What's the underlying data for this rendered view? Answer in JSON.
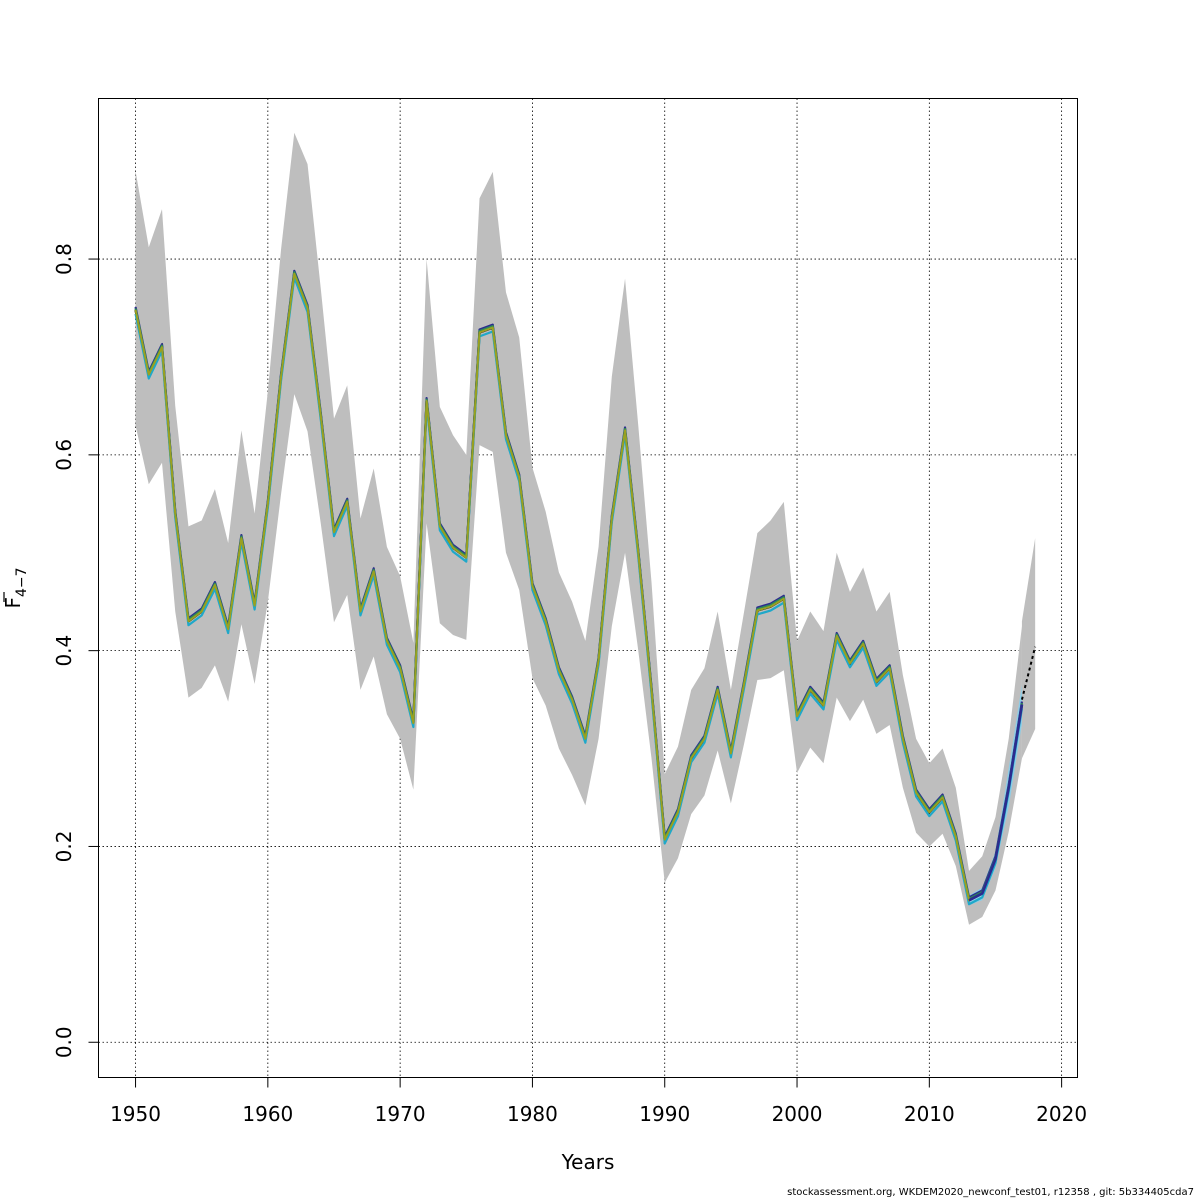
{
  "chart_data": {
    "type": "line",
    "title": "",
    "xlabel": "Years",
    "ylabel_base": "F",
    "ylabel_sub": "4−7",
    "xlim": [
      1947.2,
      2021.2
    ],
    "ylim": [
      -0.036,
      0.964
    ],
    "x_ticks": [
      1950,
      1960,
      1970,
      1980,
      1990,
      2000,
      2010,
      2020
    ],
    "x_tick_labels": [
      "1950",
      "1960",
      "1970",
      "1980",
      "1990",
      "2000",
      "2010",
      "2020"
    ],
    "y_ticks": [
      0.0,
      0.2,
      0.4,
      0.6,
      0.8
    ],
    "y_tick_labels": [
      "0.0",
      "0.2",
      "0.4",
      "0.6",
      "0.8"
    ],
    "grid": true,
    "colors": {
      "band": "#bebebe",
      "main_line": "#000000",
      "retro_lines": [
        "#2b2b8f",
        "#1fa8c9",
        "#2e8b57",
        "#9aa020"
      ],
      "retro_band": "#87ceeb",
      "forecast_line": "#000000"
    },
    "years": [
      1950,
      1951,
      1952,
      1953,
      1954,
      1955,
      1956,
      1957,
      1958,
      1959,
      1960,
      1961,
      1962,
      1963,
      1964,
      1965,
      1966,
      1967,
      1968,
      1969,
      1970,
      1971,
      1972,
      1973,
      1974,
      1975,
      1976,
      1977,
      1978,
      1979,
      1980,
      1981,
      1982,
      1983,
      1984,
      1985,
      1986,
      1987,
      1988,
      1989,
      1990,
      1991,
      1992,
      1993,
      1994,
      1995,
      1996,
      1997,
      1998,
      1999,
      2000,
      2001,
      2002,
      2003,
      2004,
      2005,
      2006,
      2007,
      2008,
      2009,
      2010,
      2011,
      2012,
      2013,
      2014,
      2015,
      2016,
      2017
    ],
    "estimate": [
      0.748,
      0.682,
      0.71,
      0.54,
      0.43,
      0.44,
      0.467,
      0.422,
      0.515,
      0.446,
      0.55,
      0.68,
      0.785,
      0.75,
      0.64,
      0.521,
      0.552,
      0.44,
      0.481,
      0.41,
      0.382,
      0.326,
      0.655,
      0.527,
      0.505,
      0.495,
      0.725,
      0.73,
      0.62,
      0.577,
      0.466,
      0.43,
      0.38,
      0.35,
      0.31,
      0.39,
      0.535,
      0.625,
      0.5,
      0.36,
      0.207,
      0.235,
      0.29,
      0.31,
      0.36,
      0.295,
      0.366,
      0.441,
      0.445,
      0.453,
      0.333,
      0.36,
      0.344,
      0.415,
      0.387,
      0.407,
      0.368,
      0.382,
      0.31,
      0.255,
      0.235,
      0.25,
      0.21,
      0.145,
      0.152,
      0.187,
      0.26,
      0.345
    ],
    "upper": [
      0.89,
      0.812,
      0.851,
      0.65,
      0.527,
      0.533,
      0.565,
      0.51,
      0.625,
      0.54,
      0.665,
      0.81,
      0.929,
      0.897,
      0.77,
      0.637,
      0.671,
      0.535,
      0.586,
      0.506,
      0.476,
      0.408,
      0.8,
      0.649,
      0.62,
      0.6,
      0.862,
      0.889,
      0.766,
      0.72,
      0.587,
      0.542,
      0.48,
      0.45,
      0.41,
      0.506,
      0.68,
      0.78,
      0.63,
      0.47,
      0.274,
      0.302,
      0.36,
      0.382,
      0.44,
      0.36,
      0.44,
      0.52,
      0.533,
      0.552,
      0.41,
      0.44,
      0.42,
      0.5,
      0.46,
      0.485,
      0.44,
      0.46,
      0.375,
      0.31,
      0.285,
      0.3,
      0.26,
      0.175,
      0.19,
      0.23,
      0.31,
      0.425
    ],
    "lower": [
      0.63,
      0.57,
      0.592,
      0.44,
      0.352,
      0.362,
      0.385,
      0.348,
      0.427,
      0.366,
      0.45,
      0.56,
      0.662,
      0.624,
      0.53,
      0.429,
      0.457,
      0.36,
      0.394,
      0.335,
      0.31,
      0.258,
      0.53,
      0.428,
      0.416,
      0.411,
      0.61,
      0.603,
      0.5,
      0.462,
      0.372,
      0.344,
      0.3,
      0.273,
      0.242,
      0.31,
      0.425,
      0.5,
      0.4,
      0.29,
      0.163,
      0.188,
      0.233,
      0.252,
      0.298,
      0.244,
      0.305,
      0.37,
      0.372,
      0.38,
      0.275,
      0.301,
      0.285,
      0.352,
      0.328,
      0.35,
      0.315,
      0.324,
      0.26,
      0.214,
      0.2,
      0.213,
      0.18,
      0.12,
      0.128,
      0.155,
      0.215,
      0.29
    ],
    "retro_lower_tail": [
      0.14,
      0.145,
      0.178,
      0.24,
      0.325
    ],
    "retro_upper_tail": [
      0.15,
      0.158,
      0.195,
      0.28,
      0.365
    ],
    "retro_tail_years": [
      2013,
      2014,
      2015,
      2016,
      2017
    ],
    "forecast": {
      "years": [
        2017,
        2018
      ],
      "values": [
        0.35,
        0.404
      ],
      "upper": [
        0.43,
        0.515
      ],
      "lower": [
        0.29,
        0.32
      ]
    }
  },
  "footer_text": "stockassessment.org, WKDEM2020_newconf_test01, r12358 , git: 5b334405cda7"
}
